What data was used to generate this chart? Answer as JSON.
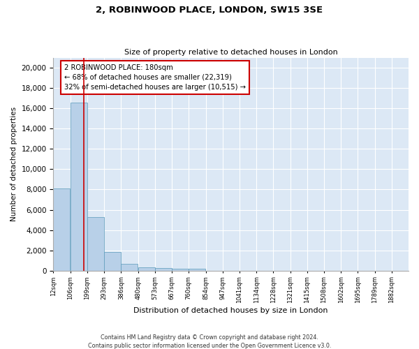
{
  "title_line1": "2, ROBINWOOD PLACE, LONDON, SW15 3SE",
  "title_line2": "Size of property relative to detached houses in London",
  "xlabel": "Distribution of detached houses by size in London",
  "ylabel": "Number of detached properties",
  "bar_color": "#b8d0e8",
  "bar_edge_color": "#5a9aba",
  "background_color": "#dce8f5",
  "grid_color": "#ffffff",
  "annotation_box_color": "#cc0000",
  "annotation_line1": "2 ROBINWOOD PLACE: 180sqm",
  "annotation_line2": "← 68% of detached houses are smaller (22,319)",
  "annotation_line3": "32% of semi-detached houses are larger (10,515) →",
  "property_line_x": 180,
  "categories": [
    "12sqm",
    "106sqm",
    "199sqm",
    "293sqm",
    "386sqm",
    "480sqm",
    "573sqm",
    "667sqm",
    "760sqm",
    "854sqm",
    "947sqm",
    "1041sqm",
    "1134sqm",
    "1228sqm",
    "1321sqm",
    "1415sqm",
    "1508sqm",
    "1602sqm",
    "1695sqm",
    "1789sqm",
    "1882sqm"
  ],
  "bin_edges": [
    12,
    106,
    199,
    293,
    386,
    480,
    573,
    667,
    760,
    854,
    947,
    1041,
    1134,
    1228,
    1321,
    1415,
    1508,
    1602,
    1695,
    1789,
    1882
  ],
  "bin_width": 93,
  "values": [
    8100,
    16600,
    5300,
    1850,
    650,
    350,
    270,
    200,
    190,
    0,
    0,
    0,
    0,
    0,
    0,
    0,
    0,
    0,
    0,
    0,
    0
  ],
  "ylim": [
    0,
    21000
  ],
  "yticks": [
    0,
    2000,
    4000,
    6000,
    8000,
    10000,
    12000,
    14000,
    16000,
    18000,
    20000
  ],
  "footer_line1": "Contains HM Land Registry data © Crown copyright and database right 2024.",
  "footer_line2": "Contains public sector information licensed under the Open Government Licence v3.0."
}
